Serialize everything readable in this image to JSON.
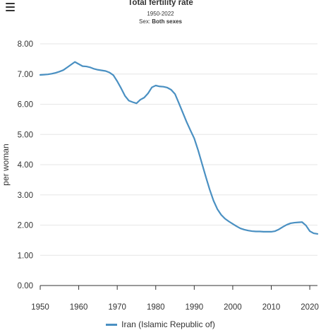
{
  "header": {
    "title": "Total fertility rate",
    "subtitle_range": "1950-2022",
    "subtitle_sex_prefix": "Sex: ",
    "subtitle_sex_value": "Both sexes"
  },
  "colors": {
    "series": "#4a90c2",
    "grid": "#e6e6e6",
    "axis": "#333333",
    "text": "#333333"
  },
  "icons": {
    "menu": "hamburger-menu-icon"
  },
  "chart_data": {
    "type": "line",
    "title": "Total fertility rate",
    "subtitle": "1950-2022",
    "ylabel": "per woman",
    "xlabel": "",
    "xlim": [
      1950,
      2022
    ],
    "ylim": [
      0,
      8
    ],
    "x_ticks": [
      1950,
      1960,
      1970,
      1980,
      1990,
      2000,
      2010,
      2020
    ],
    "y_tick_values": [
      0,
      1,
      2,
      3,
      4,
      5,
      6,
      7,
      8
    ],
    "y_tick_labels": [
      "0.00",
      "1.00",
      "2.00",
      "3.00",
      "4.00",
      "5.00",
      "6.00",
      "7.00",
      "8.00"
    ],
    "grid": true,
    "legend_position": "bottom",
    "series": [
      {
        "name": "Iran (Islamic Republic of)",
        "x": [
          1950,
          1951,
          1952,
          1953,
          1954,
          1955,
          1956,
          1957,
          1958,
          1959,
          1960,
          1961,
          1962,
          1963,
          1964,
          1965,
          1966,
          1967,
          1968,
          1969,
          1970,
          1971,
          1972,
          1973,
          1974,
          1975,
          1976,
          1977,
          1978,
          1979,
          1980,
          1981,
          1982,
          1983,
          1984,
          1985,
          1986,
          1987,
          1988,
          1989,
          1990,
          1991,
          1992,
          1993,
          1994,
          1995,
          1996,
          1997,
          1998,
          1999,
          2000,
          2001,
          2002,
          2003,
          2004,
          2005,
          2006,
          2007,
          2008,
          2009,
          2010,
          2011,
          2012,
          2013,
          2014,
          2015,
          2016,
          2017,
          2018,
          2019,
          2020,
          2021,
          2022
        ],
        "values": [
          6.97,
          6.98,
          6.99,
          7.01,
          7.04,
          7.08,
          7.13,
          7.22,
          7.31,
          7.4,
          7.33,
          7.26,
          7.25,
          7.22,
          7.17,
          7.14,
          7.12,
          7.1,
          7.05,
          6.96,
          6.76,
          6.53,
          6.28,
          6.12,
          6.07,
          6.03,
          6.15,
          6.22,
          6.36,
          6.56,
          6.62,
          6.59,
          6.58,
          6.55,
          6.48,
          6.34,
          6.04,
          5.73,
          5.42,
          5.14,
          4.87,
          4.48,
          4.04,
          3.6,
          3.18,
          2.81,
          2.53,
          2.34,
          2.21,
          2.12,
          2.04,
          1.96,
          1.89,
          1.85,
          1.82,
          1.8,
          1.79,
          1.79,
          1.78,
          1.78,
          1.78,
          1.8,
          1.86,
          1.94,
          2.01,
          2.06,
          2.08,
          2.09,
          2.1,
          1.99,
          1.8,
          1.73,
          1.71
        ]
      }
    ]
  }
}
